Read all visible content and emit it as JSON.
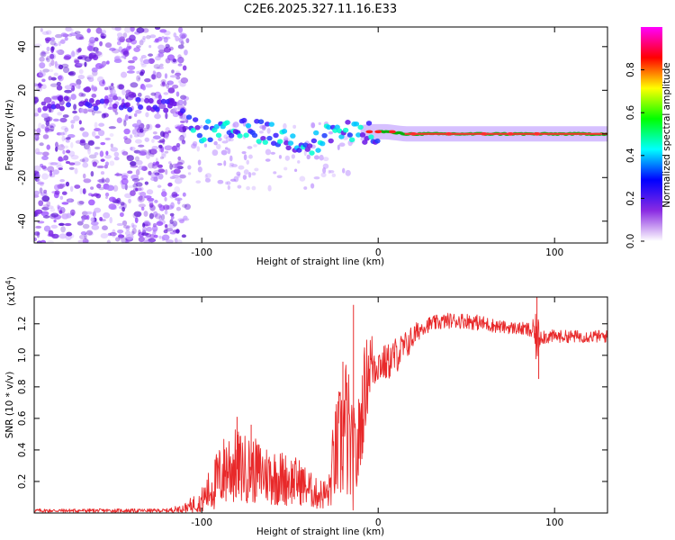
{
  "title": "C2E6.2025.327.11.16.E33",
  "chart_data": [
    {
      "type": "heatmap",
      "xlabel": "Height of straight line (km)",
      "ylabel": "Frequency (Hz)",
      "xlim": [
        -195,
        130
      ],
      "ylim": [
        -50,
        49
      ],
      "xticks": [
        -100,
        0,
        100
      ],
      "yticks": [
        -40,
        -20,
        0,
        20,
        40
      ],
      "ridge": {
        "x": [
          -190,
          -170,
          -150,
          -130,
          -115,
          -105,
          -90,
          -70,
          -50,
          -35,
          -25,
          -15,
          -5,
          5,
          15,
          30,
          60,
          90,
          130
        ],
        "freq": [
          14,
          14,
          14,
          13,
          13,
          2,
          0,
          2,
          -3,
          -4,
          2,
          0,
          1,
          1,
          0,
          0,
          0,
          0,
          0
        ]
      },
      "colorbar": {
        "label": "Normalized spectral amplitude",
        "range": [
          0,
          1
        ],
        "ticks": [
          0.0,
          0.2,
          0.4,
          0.6,
          0.8
        ],
        "tick_labels": [
          "0.0",
          "0.2",
          "0.4",
          "0.6",
          "0.8"
        ],
        "colormap": [
          "#ffffff",
          "#8a2be2",
          "#0000ff",
          "#00ffff",
          "#00ff00",
          "#ffff00",
          "#ff0000",
          "#ff00ff"
        ]
      }
    },
    {
      "type": "line",
      "xlabel": "Height of straight line (km)",
      "ylabel": "SNR (10 * v/v)",
      "yscale_label": "(x10",
      "yscale_exp": "4",
      "xlim": [
        -195,
        130
      ],
      "ylim": [
        0,
        1.37
      ],
      "xticks": [
        -100,
        0,
        100
      ],
      "yticks": [
        0.2,
        0.4,
        0.6,
        0.8,
        1.0,
        1.2
      ],
      "ytick_labels": [
        "0.2",
        "0.4",
        "0.6",
        "0.8",
        "1.0",
        "1.2"
      ],
      "color": "#e8292a",
      "envelope": {
        "x": [
          -195,
          -120,
          -110,
          -100,
          -95,
          -85,
          -75,
          -65,
          -55,
          -45,
          -35,
          -28,
          -25,
          -22,
          -18,
          -15,
          -12,
          -8,
          -5,
          0,
          5,
          10,
          15,
          20,
          25,
          30,
          40,
          50,
          60,
          70,
          80,
          85,
          88,
          90,
          92,
          95,
          100,
          110,
          120,
          130
        ],
        "mean": [
          0.015,
          0.015,
          0.03,
          0.08,
          0.15,
          0.3,
          0.28,
          0.25,
          0.22,
          0.2,
          0.12,
          0.12,
          0.35,
          0.42,
          0.55,
          0.35,
          0.35,
          0.75,
          0.95,
          0.95,
          0.95,
          1.0,
          1.05,
          1.12,
          1.18,
          1.2,
          1.22,
          1.22,
          1.2,
          1.18,
          1.17,
          1.16,
          1.15,
          1.1,
          1.13,
          1.12,
          1.12,
          1.12,
          1.12,
          1.12
        ],
        "noise": [
          0.012,
          0.012,
          0.03,
          0.08,
          0.15,
          0.26,
          0.22,
          0.2,
          0.18,
          0.15,
          0.1,
          0.1,
          0.3,
          0.38,
          0.5,
          0.35,
          0.3,
          0.3,
          0.25,
          0.12,
          0.12,
          0.12,
          0.1,
          0.08,
          0.05,
          0.05,
          0.05,
          0.05,
          0.05,
          0.04,
          0.04,
          0.05,
          0.08,
          0.18,
          0.06,
          0.05,
          0.04,
          0.04,
          0.04,
          0.04
        ]
      },
      "peaks": [
        {
          "x": -80,
          "y": 0.61
        },
        {
          "x": -72,
          "y": 0.56
        },
        {
          "x": -14,
          "y": 1.32
        },
        {
          "x": -20,
          "y": 0.96
        },
        {
          "x": 90,
          "y": 1.38
        },
        {
          "x": 91,
          "y": 0.85
        }
      ]
    }
  ]
}
